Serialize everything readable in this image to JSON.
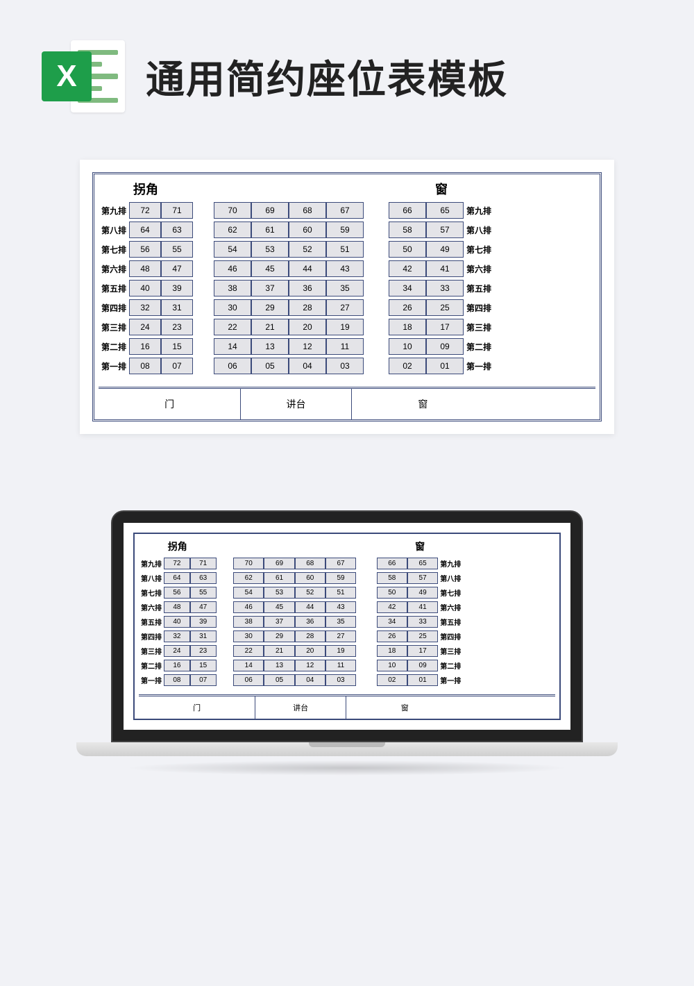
{
  "header": {
    "icon_letter": "X",
    "title": "通用简约座位表模板"
  },
  "chart": {
    "top_left_label": "拐角",
    "top_right_label": "窗",
    "border_color": "#3b4a7a",
    "seat_bg": "#e4e4e8",
    "footer": [
      "门",
      "讲台",
      "窗"
    ],
    "footer_widths": [
      36,
      28,
      36
    ],
    "columns": {
      "label_width": 44,
      "group1_seat_width": 46,
      "group2_seat_width": 54,
      "group3_seat_width": 54,
      "gap1": 30,
      "gap2": 36
    },
    "rows": [
      {
        "label": "第九排",
        "g1": [
          "72",
          "71"
        ],
        "g2": [
          "70",
          "69",
          "68",
          "67"
        ],
        "g3": [
          "66",
          "65"
        ]
      },
      {
        "label": "第八排",
        "g1": [
          "64",
          "63"
        ],
        "g2": [
          "62",
          "61",
          "60",
          "59"
        ],
        "g3": [
          "58",
          "57"
        ]
      },
      {
        "label": "第七排",
        "g1": [
          "56",
          "55"
        ],
        "g2": [
          "54",
          "53",
          "52",
          "51"
        ],
        "g3": [
          "50",
          "49"
        ]
      },
      {
        "label": "第六排",
        "g1": [
          "48",
          "47"
        ],
        "g2": [
          "46",
          "45",
          "44",
          "43"
        ],
        "g3": [
          "42",
          "41"
        ]
      },
      {
        "label": "第五排",
        "g1": [
          "40",
          "39"
        ],
        "g2": [
          "38",
          "37",
          "36",
          "35"
        ],
        "g3": [
          "34",
          "33"
        ]
      },
      {
        "label": "第四排",
        "g1": [
          "32",
          "31"
        ],
        "g2": [
          "30",
          "29",
          "28",
          "27"
        ],
        "g3": [
          "26",
          "25"
        ]
      },
      {
        "label": "第三排",
        "g1": [
          "24",
          "23"
        ],
        "g2": [
          "22",
          "21",
          "20",
          "19"
        ],
        "g3": [
          "18",
          "17"
        ]
      },
      {
        "label": "第二排",
        "g1": [
          "16",
          "15"
        ],
        "g2": [
          "14",
          "13",
          "12",
          "11"
        ],
        "g3": [
          "10",
          "09"
        ]
      },
      {
        "label": "第一排",
        "g1": [
          "08",
          "07"
        ],
        "g2": [
          "06",
          "05",
          "04",
          "03"
        ],
        "g3": [
          "02",
          "01"
        ]
      }
    ]
  }
}
